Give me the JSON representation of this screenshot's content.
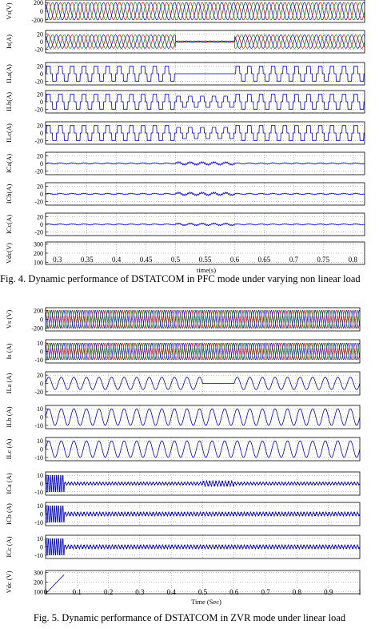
{
  "figures": [
    {
      "caption": "Fig. 4. Dynamic performance of DSTATCOM in PFC mode under varying non linear load",
      "xlabel": "time(s)",
      "xticks": [
        "0.3",
        "0.35",
        "0.4",
        "0.45",
        "0.5",
        "0.55",
        "0.6",
        "0.65",
        "0.7",
        "0.75",
        "0.8"
      ]
    },
    {
      "caption": "Fig. 5. Dynamic performance of DSTATCOM in ZVR mode under linear load",
      "xlabel": "Time (Sec)",
      "xticks": [
        "0",
        "0.1",
        "0.2",
        "0.3",
        "0.4",
        "0.5",
        "0.6",
        "0.7",
        "0.8",
        "0.9",
        "1"
      ]
    }
  ],
  "colors": {
    "trace": "#0000cc",
    "phase_a": "#dd0000",
    "phase_b": "#008800",
    "phase_c": "#0000dd"
  },
  "chart_data": [
    {
      "type": "line",
      "title": "",
      "xlabel": "time(s)",
      "xlim": [
        0.28,
        0.82
      ],
      "panels": [
        {
          "ylabel": "Vs(V)",
          "yticks": [
            "200",
            "0",
            "-200"
          ],
          "ylim": [
            -260,
            260
          ],
          "signal": "three-phase-sine",
          "cycles": 27,
          "amplitude": 200
        },
        {
          "ylabel": "Is(A)",
          "yticks": [
            "20",
            "0",
            "-20"
          ],
          "ylim": [
            -30,
            30
          ],
          "signal": "three-phase-sine",
          "cycles": 27,
          "amplitude": [
            18,
            2,
            18
          ],
          "segments_x": [
            0.5,
            0.6
          ]
        },
        {
          "ylabel": "ILa(A)",
          "yticks": [
            "20",
            "0",
            "-20"
          ],
          "ylim": [
            -30,
            30
          ],
          "signal": "quasi-square",
          "cycles": 27,
          "amplitude": [
            20,
            0,
            20
          ],
          "segments_x": [
            0.5,
            0.6
          ]
        },
        {
          "ylabel": "ILb(A)",
          "yticks": [
            "20",
            "0",
            "-20"
          ],
          "ylim": [
            -30,
            30
          ],
          "signal": "quasi-square",
          "cycles": 27,
          "amplitude": [
            20,
            15,
            20
          ],
          "segments_x": [
            0.5,
            0.6
          ]
        },
        {
          "ylabel": "ILc(A)",
          "yticks": [
            "20",
            "0",
            "-20"
          ],
          "ylim": [
            -30,
            30
          ],
          "signal": "quasi-square",
          "cycles": 27,
          "amplitude": [
            20,
            15,
            20
          ],
          "segments_x": [
            0.5,
            0.6
          ]
        },
        {
          "ylabel": "ICa(A)",
          "yticks": [
            "20",
            "0",
            "-20"
          ],
          "ylim": [
            -30,
            30
          ],
          "signal": "ripple",
          "cycles": 27,
          "amplitude": [
            2,
            5,
            2
          ],
          "segments_x": [
            0.5,
            0.6
          ]
        },
        {
          "ylabel": "ICb(A)",
          "yticks": [
            "20",
            "0",
            "-20"
          ],
          "ylim": [
            -30,
            30
          ],
          "signal": "ripple",
          "cycles": 27,
          "amplitude": [
            2,
            5,
            2
          ],
          "segments_x": [
            0.5,
            0.6
          ]
        },
        {
          "ylabel": "ICc(A)",
          "yticks": [
            "20",
            "0",
            "-20"
          ],
          "ylim": [
            -30,
            30
          ],
          "signal": "ripple",
          "cycles": 27,
          "amplitude": [
            2,
            4,
            2
          ],
          "segments_x": [
            0.5,
            0.6
          ]
        },
        {
          "ylabel": "Vdc(V)",
          "yticks": [
            "300",
            "200",
            "100"
          ],
          "ylim": [
            80,
            320
          ],
          "signal": "dc-level",
          "level": 200,
          "dip": 210
        }
      ]
    },
    {
      "type": "line",
      "title": "",
      "xlabel": "Time (Sec)",
      "xlim": [
        0,
        1
      ],
      "panels": [
        {
          "ylabel": "Vs (V)",
          "yticks": [
            "200",
            "0",
            "-200"
          ],
          "ylim": [
            -260,
            260
          ],
          "signal": "three-phase-sine",
          "cycles": 50,
          "amplitude": 200
        },
        {
          "ylabel": "Is (A)",
          "yticks": [
            "10",
            "0",
            "-10"
          ],
          "ylim": [
            -14,
            14
          ],
          "signal": "three-phase-sine",
          "cycles": 50,
          "amplitude": 10
        },
        {
          "ylabel": "ILa (A)",
          "yticks": [
            "20",
            "0",
            "-20"
          ],
          "ylim": [
            -28,
            28
          ],
          "signal": "sine",
          "cycles": 25,
          "amplitude": [
            15,
            0,
            15
          ],
          "segments_x": [
            0.5,
            0.6
          ]
        },
        {
          "ylabel": "ILb (A)",
          "yticks": [
            "10",
            "0",
            "-10"
          ],
          "ylim": [
            -14,
            14
          ],
          "signal": "sine",
          "cycles": 25,
          "amplitude": 10
        },
        {
          "ylabel": "ILc (A)",
          "yticks": [
            "10",
            "0",
            "-10"
          ],
          "ylim": [
            -14,
            14
          ],
          "signal": "sine",
          "cycles": 25,
          "amplitude": 10
        },
        {
          "ylabel": "ICa (A)",
          "yticks": [
            "10",
            "0",
            "-10"
          ],
          "ylim": [
            -14,
            14
          ],
          "signal": "dense-ripple",
          "cycles": 50,
          "amplitude": [
            2,
            4,
            2
          ],
          "segments_x": [
            0.5,
            0.6
          ],
          "startup": 0.06
        },
        {
          "ylabel": "ICb (A)",
          "yticks": [
            "10",
            "0",
            "-10"
          ],
          "ylim": [
            -14,
            14
          ],
          "signal": "dense-ripple",
          "cycles": 50,
          "amplitude": 3,
          "startup": 0.06
        },
        {
          "ylabel": "ICc (A)",
          "yticks": [
            "10",
            "0",
            "-10"
          ],
          "ylim": [
            -14,
            14
          ],
          "signal": "dense-ripple",
          "cycles": 50,
          "amplitude": 3,
          "startup": 0.06
        },
        {
          "ylabel": "Vdc (V)",
          "yticks": [
            "300",
            "200",
            "100"
          ],
          "ylim": [
            80,
            320
          ],
          "signal": "dc-level",
          "level": 280,
          "startup": 0.06
        }
      ]
    }
  ]
}
